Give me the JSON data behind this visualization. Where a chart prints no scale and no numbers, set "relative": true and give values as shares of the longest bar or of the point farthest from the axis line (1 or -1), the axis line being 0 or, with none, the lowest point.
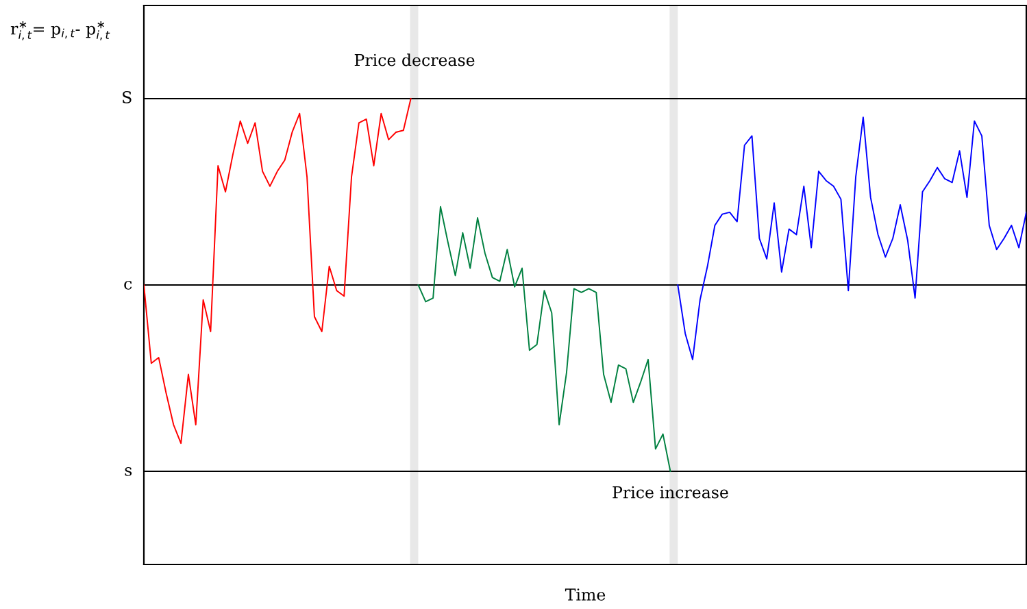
{
  "chart_data": {
    "type": "line",
    "relative": true,
    "ylabel": "r$^{∗}$$_{i,t}$= p$_{i,t}$- p$^{∗}$$_{i,t}$",
    "categories": [
      null,
      null,
      null,
      null,
      null,
      null,
      null,
      null,
      null,
      null,
      null,
      null,
      null,
      null,
      null,
      null,
      null,
      null,
      null,
      null,
      null,
      null,
      null,
      null,
      null,
      null,
      null,
      null,
      null,
      null,
      null,
      null,
      null,
      null,
      null,
      null,
      null,
      null,
      null,
      null,
      null,
      null,
      null,
      null,
      null,
      null,
      null,
      null,
      null,
      null,
      null,
      null,
      null,
      null,
      null,
      null,
      null,
      null,
      null,
      null,
      null,
      null,
      null,
      null,
      null,
      null,
      null,
      null,
      null,
      null,
      null,
      null,
      null,
      null,
      null,
      null,
      null,
      null,
      null,
      null,
      null,
      null,
      null,
      null,
      null,
      null,
      null,
      null,
      null,
      null,
      null,
      null,
      null,
      null,
      null,
      null,
      null,
      null,
      null,
      null,
      null,
      null,
      null,
      null,
      null,
      null,
      null,
      null,
      null,
      null,
      null,
      null,
      null,
      null,
      null,
      null,
      null,
      null,
      null,
      null
    ],
    "series": [
      {
        "color": "#ff0000",
        "values": [
          0,
          -0.42,
          -0.39,
          -0.58,
          -0.75,
          -0.85,
          -0.48,
          -0.75,
          -0.08,
          -0.25,
          0.64,
          0.5,
          0.7,
          0.88,
          0.76,
          0.87,
          0.61,
          0.53,
          0.61,
          0.67,
          0.82,
          0.92,
          0.58,
          -0.17,
          -0.25,
          0.1,
          -0.03,
          -0.06,
          0.58,
          0.87,
          0.89,
          0.64,
          0.92,
          0.78,
          0.82,
          0.83,
          1,
          null,
          null,
          null,
          null,
          null,
          null,
          null,
          null,
          null,
          null,
          null,
          null,
          null,
          null,
          null,
          null,
          null,
          null,
          null,
          null,
          null,
          null,
          null,
          null,
          null,
          null,
          null,
          null,
          null,
          null,
          null,
          null,
          null,
          null,
          null,
          null,
          null,
          null,
          null,
          null,
          null,
          null,
          null,
          null,
          null,
          null,
          null,
          null,
          null,
          null,
          null,
          null,
          null,
          null,
          null,
          null,
          null,
          null,
          null,
          null,
          null,
          null,
          null,
          null,
          null,
          null,
          null,
          null,
          null,
          null,
          null,
          null,
          null,
          null,
          null,
          null,
          null,
          null,
          null,
          null,
          null,
          null,
          null
        ]
      },
      {
        "color": "#008040",
        "values": [
          null,
          null,
          null,
          null,
          null,
          null,
          null,
          null,
          null,
          null,
          null,
          null,
          null,
          null,
          null,
          null,
          null,
          null,
          null,
          null,
          null,
          null,
          null,
          null,
          null,
          null,
          null,
          null,
          null,
          null,
          null,
          null,
          null,
          null,
          null,
          null,
          null,
          0,
          -0.09,
          -0.07,
          0.42,
          0.23,
          0.05,
          0.28,
          0.09,
          0.36,
          0.17,
          0.04,
          0.02,
          0.19,
          -0.01,
          0.09,
          -0.35,
          -0.32,
          -0.03,
          -0.15,
          -0.75,
          -0.47,
          -0.02,
          -0.04,
          -0.02,
          -0.04,
          -0.48,
          -0.63,
          -0.43,
          -0.45,
          -0.63,
          -0.52,
          -0.4,
          -0.88,
          -0.8,
          -1,
          null,
          null,
          null,
          null,
          null,
          null,
          null,
          null,
          null,
          null,
          null,
          null,
          null,
          null,
          null,
          null,
          null,
          null,
          null,
          null,
          null,
          null,
          null,
          null,
          null,
          null,
          null,
          null,
          null,
          null,
          null,
          null,
          null,
          null,
          null,
          null,
          null,
          null,
          null,
          null,
          null,
          null,
          null,
          null,
          null,
          null,
          null,
          null
        ]
      },
      {
        "color": "#0000ff",
        "values": [
          null,
          null,
          null,
          null,
          null,
          null,
          null,
          null,
          null,
          null,
          null,
          null,
          null,
          null,
          null,
          null,
          null,
          null,
          null,
          null,
          null,
          null,
          null,
          null,
          null,
          null,
          null,
          null,
          null,
          null,
          null,
          null,
          null,
          null,
          null,
          null,
          null,
          null,
          null,
          null,
          null,
          null,
          null,
          null,
          null,
          null,
          null,
          null,
          null,
          null,
          null,
          null,
          null,
          null,
          null,
          null,
          null,
          null,
          null,
          null,
          null,
          null,
          null,
          null,
          null,
          null,
          null,
          null,
          null,
          null,
          null,
          null,
          0,
          -0.26,
          -0.4,
          -0.08,
          0.1,
          0.32,
          0.38,
          0.39,
          0.34,
          0.75,
          0.8,
          0.25,
          0.14,
          0.44,
          0.07,
          0.3,
          0.27,
          0.53,
          0.2,
          0.61,
          0.56,
          0.53,
          0.46,
          -0.03,
          0.58,
          0.9,
          0.47,
          0.27,
          0.15,
          0.25,
          0.43,
          0.24,
          -0.07,
          0.5,
          0.56,
          0.63,
          0.57,
          0.55,
          0.72,
          0.47,
          0.88,
          0.8,
          0.32,
          0.19,
          0.25,
          0.32,
          0.2,
          0.39
        ]
      }
    ],
    "ref_lines": [
      {
        "axis": "y",
        "value": 1,
        "label": "S",
        "color": "#000000"
      },
      {
        "axis": "y",
        "value": 0,
        "label": "c",
        "color": "#000000"
      },
      {
        "axis": "y",
        "value": -1,
        "label": "s",
        "color": "#000000"
      }
    ],
    "annotations": [
      "Price decrease",
      "Price increase",
      "Time"
    ],
    "grid": false
  }
}
